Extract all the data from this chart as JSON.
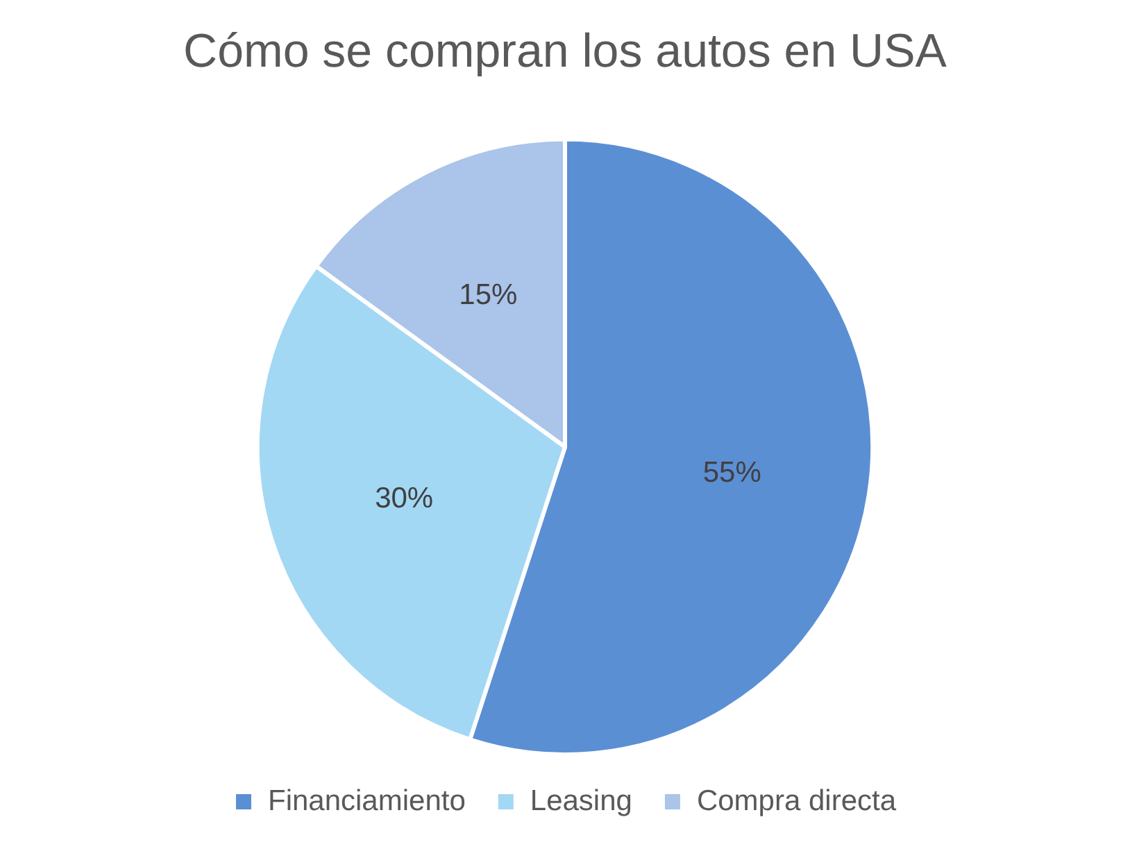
{
  "chart_data": {
    "type": "pie",
    "title": "Cómo se compran los autos en USA",
    "categories": [
      "Financiamiento",
      "Leasing",
      "Compra directa"
    ],
    "values": [
      55,
      30,
      15
    ],
    "value_labels": [
      "55%",
      "30%",
      "15%"
    ],
    "colors": [
      "#5b8fd4",
      "#a3d8f4",
      "#aac4ea"
    ],
    "legend": "bottom"
  }
}
